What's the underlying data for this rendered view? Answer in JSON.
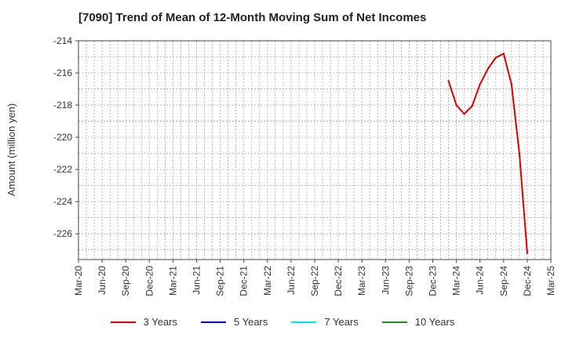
{
  "chart_data": {
    "type": "line",
    "title": "[7090]  Trend of Mean of 12-Month Moving Sum of Net Incomes",
    "xlabel": "",
    "ylabel": "Amount (million yen)",
    "ylim": [
      -227.6,
      -214
    ],
    "yticks": [
      -214,
      -216,
      -218,
      -220,
      -222,
      -224,
      -226
    ],
    "x_tick_labels": [
      "Mar-20",
      "Jun-20",
      "Sep-20",
      "Dec-20",
      "Mar-21",
      "Jun-21",
      "Sep-21",
      "Dec-21",
      "Mar-22",
      "Jun-22",
      "Sep-22",
      "Dec-22",
      "Mar-23",
      "Jun-23",
      "Sep-23",
      "Dec-23",
      "Mar-24",
      "Jun-24",
      "Sep-24",
      "Dec-24",
      "Mar-25"
    ],
    "x_range_months": [
      0,
      60
    ],
    "grid": true,
    "legend_position": "bottom",
    "series": [
      {
        "name": "3 Years",
        "color": "#dd0000",
        "points": [
          {
            "x": "Feb-24",
            "m": 47,
            "y": -216.5
          },
          {
            "x": "Mar-24",
            "m": 48,
            "y": -218.0
          },
          {
            "x": "Apr-24",
            "m": 49,
            "y": -218.55
          },
          {
            "x": "May-24",
            "m": 50,
            "y": -218.05
          },
          {
            "x": "Jun-24",
            "m": 51,
            "y": -216.7
          },
          {
            "x": "Jul-24",
            "m": 52,
            "y": -215.75
          },
          {
            "x": "Aug-24",
            "m": 53,
            "y": -215.05
          },
          {
            "x": "Sep-24",
            "m": 54,
            "y": -214.8
          },
          {
            "x": "Oct-24",
            "m": 55,
            "y": -216.7
          },
          {
            "x": "Nov-24",
            "m": 56,
            "y": -221.0
          },
          {
            "x": "Dec-24",
            "m": 57,
            "y": -227.2
          }
        ]
      },
      {
        "name": "5 Years",
        "color": "#0000cc",
        "points": []
      },
      {
        "name": "7 Years",
        "color": "#00e5ee",
        "points": []
      },
      {
        "name": "10 Years",
        "color": "#228b22",
        "points": []
      }
    ]
  }
}
